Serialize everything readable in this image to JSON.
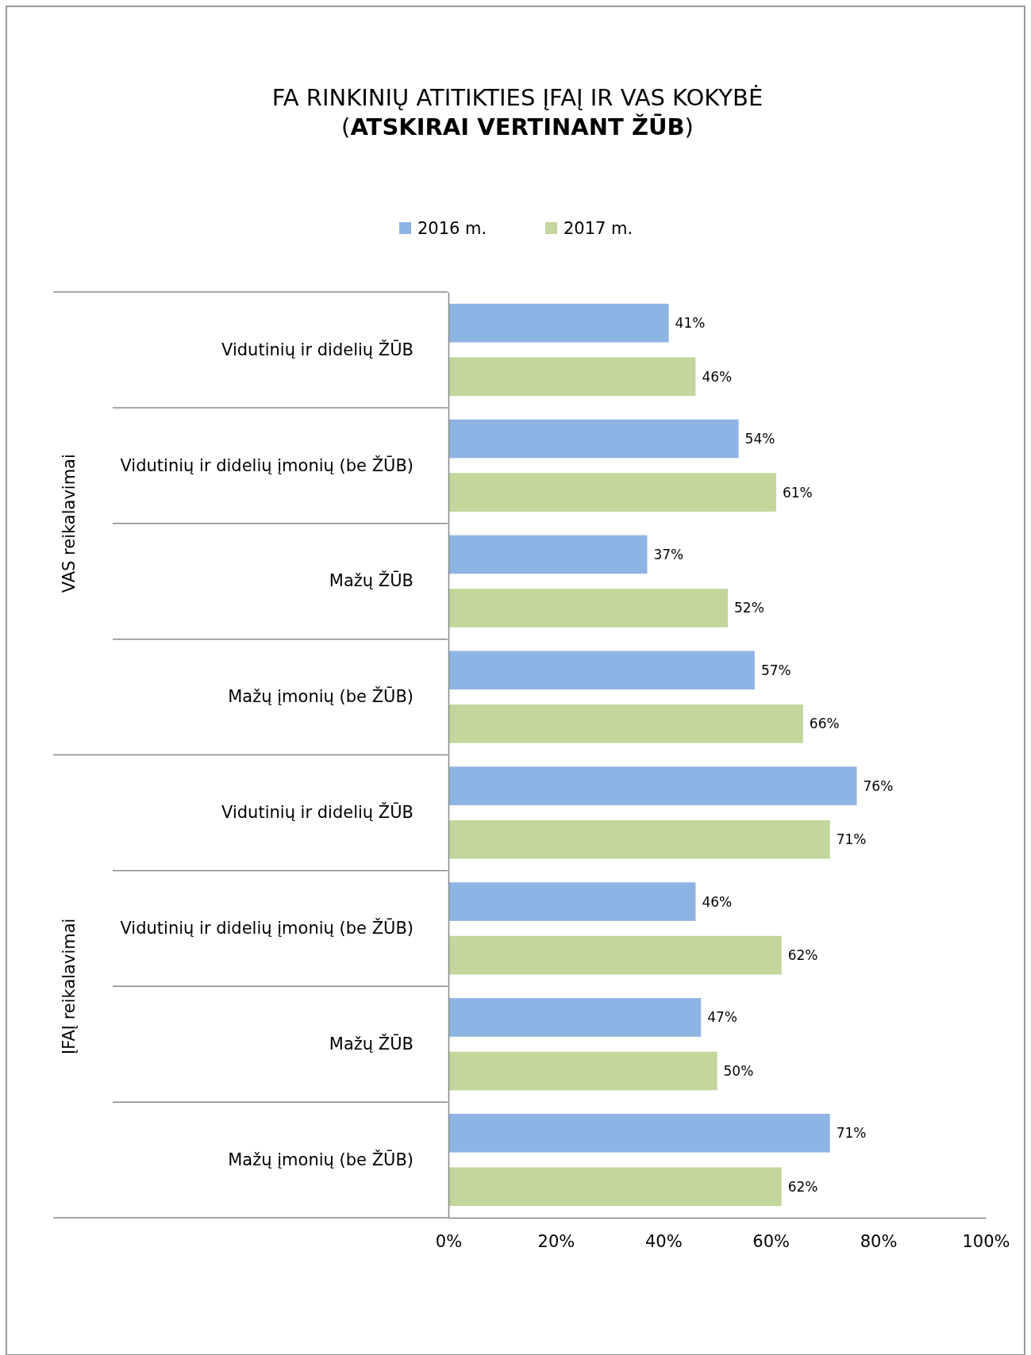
{
  "chart_data": {
    "type": "bar",
    "orientation": "horizontal",
    "title": "FA RINKINIŲ ATITIKTIES ĮFAĮ IR VAS KOKYBĖ",
    "subtitle": "(ATSKIRAI VERTINANT ŽŪB)",
    "categories": [
      "Vidutinių ir didelių ŽŪB",
      "Vidutinių ir didelių įmonių (be ŽŪB)",
      "Mažų ŽŪB",
      "Mažų įmonių (be ŽŪB)",
      "Vidutinių ir didelių ŽŪB",
      "Vidutinių ir didelių įmonių (be ŽŪB)",
      "Mažų ŽŪB",
      "Mažų įmonių (be ŽŪB)"
    ],
    "series": [
      {
        "name": "2016 m.",
        "color": "#8eb4e3",
        "values": [
          41,
          54,
          37,
          57,
          76,
          46,
          47,
          71
        ],
        "value_labels": [
          "41%",
          "54%",
          "37%",
          "57%",
          "76%",
          "46%",
          "47%",
          "71%"
        ]
      },
      {
        "name": "2017 m.",
        "color": "#c3d69b",
        "values": [
          46,
          61,
          52,
          66,
          71,
          62,
          50,
          62
        ],
        "value_labels": [
          "46%",
          "61%",
          "52%",
          "66%",
          "71%",
          "62%",
          "50%",
          "62%"
        ]
      }
    ],
    "xlim": [
      0,
      100
    ],
    "xticks": [
      {
        "value": 0,
        "label": "0%"
      },
      {
        "value": 20,
        "label": "20%"
      },
      {
        "value": 40,
        "label": "40%"
      },
      {
        "value": 60,
        "label": "60%"
      },
      {
        "value": 80,
        "label": "80%"
      },
      {
        "value": 100,
        "label": "100%"
      }
    ],
    "annotations": [
      "VAS reikalavimai",
      "ĮFAĮ reikalavimai"
    ],
    "legend": "top",
    "grid": false
  }
}
